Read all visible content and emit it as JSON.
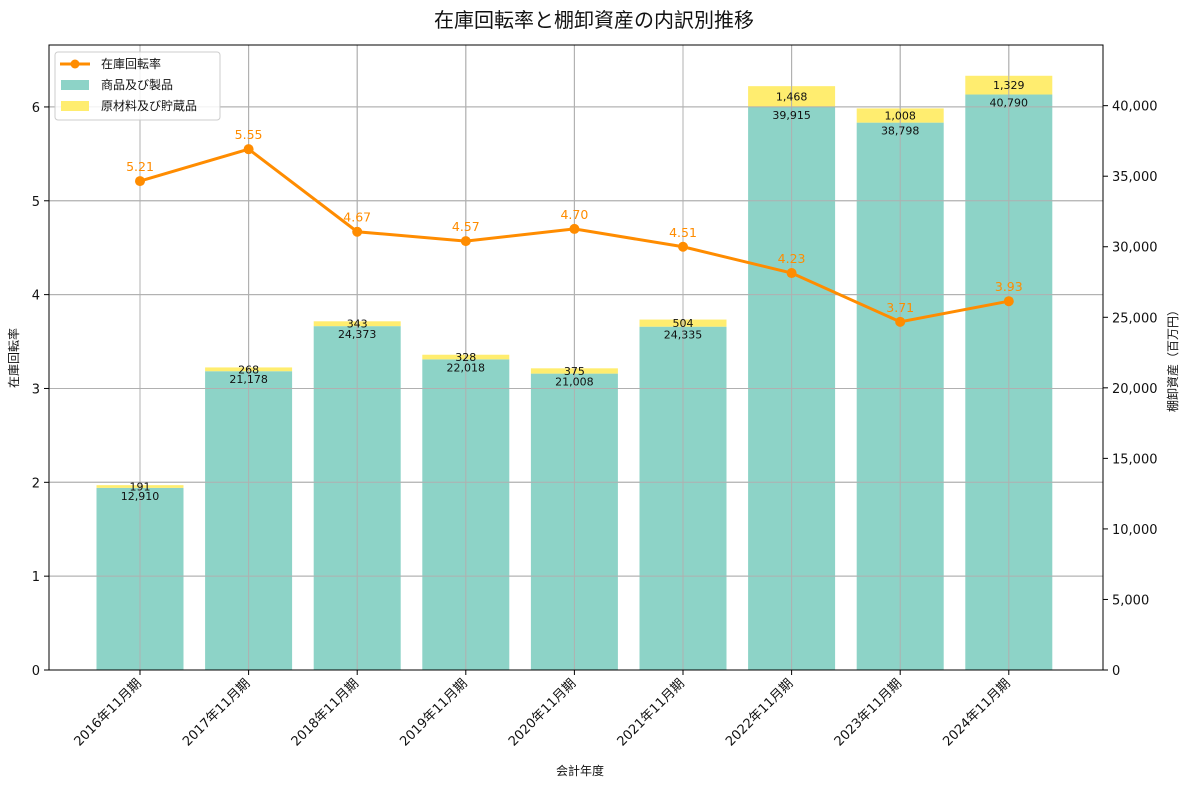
{
  "chart_data": {
    "type": "bar",
    "title": "在庫回転率と棚卸資産の内訳別推移",
    "xlabel": "会計年度",
    "ylabel": "在庫回転率",
    "y2label": "棚卸資産（百万円）",
    "categories": [
      "2016年11月期",
      "2017年11月期",
      "2018年11月期",
      "2019年11月期",
      "2020年11月期",
      "2021年11月期",
      "2022年11月期",
      "2023年11月期",
      "2024年11月期"
    ],
    "series": [
      {
        "name": "商品及び製品",
        "type": "bar",
        "axis": "right",
        "color": "#8dd3c7",
        "values": [
          12910,
          21178,
          24373,
          22018,
          21008,
          24335,
          39915,
          38798,
          40790
        ],
        "labels": [
          "12,910",
          "21,178",
          "24,373",
          "22,018",
          "21,008",
          "24,335",
          "39,915",
          "38,798",
          "40,790"
        ]
      },
      {
        "name": "原材料及び貯蔵品",
        "type": "bar",
        "stacked": true,
        "axis": "right",
        "color": "#ffed6f",
        "values": [
          191,
          268,
          343,
          328,
          375,
          504,
          1468,
          1008,
          1329
        ],
        "labels": [
          "191",
          "268",
          "343",
          "328",
          "375",
          "504",
          "1,468",
          "1,008",
          "1,329"
        ]
      },
      {
        "name": "在庫回転率",
        "type": "line",
        "axis": "left",
        "color": "#ff8c00",
        "values": [
          5.21,
          5.55,
          4.67,
          4.57,
          4.7,
          4.51,
          4.23,
          3.71,
          3.93
        ],
        "labels": [
          "5.21",
          "5.55",
          "4.67",
          "4.57",
          "4.70",
          "4.51",
          "4.23",
          "3.71",
          "3.93"
        ]
      }
    ],
    "ylim": [
      0,
      6.66
    ],
    "y2lim": [
      0,
      44300
    ],
    "yticks": [
      "0",
      "1",
      "2",
      "3",
      "4",
      "5",
      "6"
    ],
    "y2ticks": [
      "0",
      "5,000",
      "10,000",
      "15,000",
      "20,000",
      "25,000",
      "30,000",
      "35,000",
      "40,000"
    ],
    "grid": true,
    "legend_position": "upper left"
  }
}
